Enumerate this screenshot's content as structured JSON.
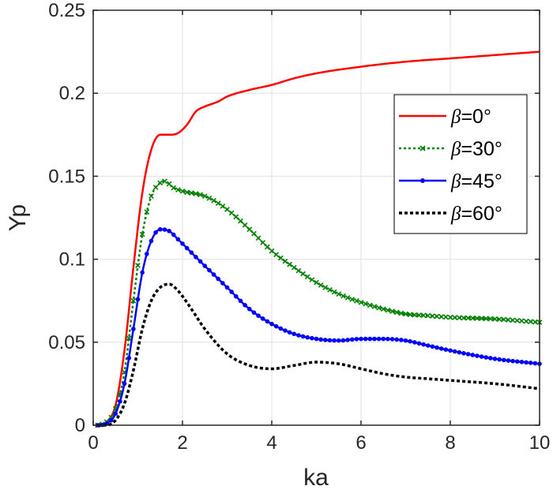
{
  "chart_data": {
    "type": "line",
    "xlabel": "ka",
    "ylabel": "Yp",
    "xlim": [
      0,
      10
    ],
    "ylim": [
      0,
      0.25
    ],
    "xticks": [
      0,
      2,
      4,
      6,
      8,
      10
    ],
    "xtick_labels": [
      "0",
      "2",
      "4",
      "6",
      "8",
      "10"
    ],
    "yticks": [
      0,
      0.05,
      0.1,
      0.15,
      0.2,
      0.25
    ],
    "ytick_labels": [
      "0",
      "0.05",
      "0.1",
      "0.15",
      "0.2",
      "0.25"
    ],
    "grid": true,
    "legend_position": "right",
    "series": [
      {
        "name": "=0°",
        "legend_prefix": "β",
        "color": "#ff0000",
        "style": "solid",
        "marker": "none",
        "x": [
          0.1,
          0.3,
          0.5,
          0.7,
          0.9,
          1.1,
          1.3,
          1.5,
          1.7,
          1.9,
          2.1,
          2.3,
          2.5,
          2.8,
          3.0,
          3.5,
          4.0,
          4.5,
          5.0,
          6.0,
          7.0,
          8.0,
          9.0,
          10.0
        ],
        "y": [
          0.0,
          0.002,
          0.012,
          0.045,
          0.095,
          0.14,
          0.166,
          0.175,
          0.175,
          0.176,
          0.181,
          0.189,
          0.192,
          0.195,
          0.198,
          0.202,
          0.205,
          0.209,
          0.212,
          0.216,
          0.219,
          0.221,
          0.223,
          0.225
        ]
      },
      {
        "name": "=30°",
        "legend_prefix": "β",
        "color": "#008000",
        "style": "dotted",
        "marker": "x",
        "x": [
          0.1,
          0.3,
          0.5,
          0.7,
          0.9,
          1.1,
          1.3,
          1.5,
          1.6,
          1.8,
          2.0,
          2.5,
          3.0,
          3.5,
          4.0,
          4.5,
          5.0,
          5.5,
          6.0,
          6.5,
          7.0,
          7.5,
          8.0,
          9.0,
          10.0
        ],
        "y": [
          0.0,
          0.002,
          0.01,
          0.032,
          0.075,
          0.115,
          0.138,
          0.146,
          0.147,
          0.143,
          0.141,
          0.138,
          0.13,
          0.118,
          0.105,
          0.095,
          0.086,
          0.079,
          0.074,
          0.07,
          0.067,
          0.066,
          0.065,
          0.064,
          0.062
        ]
      },
      {
        "name": "=45°",
        "legend_prefix": "β",
        "color": "#0000ff",
        "style": "solid",
        "marker": "dot",
        "x": [
          0.1,
          0.3,
          0.5,
          0.7,
          0.9,
          1.1,
          1.3,
          1.5,
          1.7,
          1.9,
          2.2,
          2.5,
          3.0,
          3.5,
          4.0,
          4.5,
          5.0,
          5.5,
          6.0,
          6.5,
          7.0,
          7.5,
          8.0,
          9.0,
          10.0
        ],
        "y": [
          0.0,
          0.001,
          0.007,
          0.025,
          0.058,
          0.092,
          0.111,
          0.118,
          0.117,
          0.112,
          0.104,
          0.096,
          0.083,
          0.07,
          0.061,
          0.055,
          0.052,
          0.051,
          0.052,
          0.052,
          0.051,
          0.048,
          0.045,
          0.04,
          0.037
        ]
      },
      {
        "name": "=60°",
        "legend_prefix": "β",
        "color": "#000000",
        "style": "dotted",
        "marker": "none",
        "x": [
          0.1,
          0.3,
          0.5,
          0.7,
          0.9,
          1.1,
          1.3,
          1.5,
          1.7,
          1.9,
          2.2,
          2.5,
          3.0,
          3.5,
          4.0,
          4.5,
          5.0,
          5.5,
          6.0,
          6.5,
          7.0,
          7.5,
          8.0,
          9.0,
          10.0
        ],
        "y": [
          0.0,
          0.0,
          0.003,
          0.013,
          0.033,
          0.058,
          0.075,
          0.083,
          0.085,
          0.081,
          0.07,
          0.058,
          0.043,
          0.036,
          0.034,
          0.036,
          0.038,
          0.037,
          0.034,
          0.031,
          0.029,
          0.028,
          0.027,
          0.025,
          0.022
        ]
      }
    ]
  }
}
